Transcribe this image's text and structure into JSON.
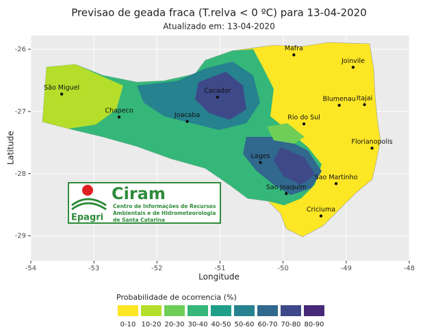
{
  "chart_data": {
    "type": "map",
    "title": "Previsao de geada fraca (T.relva < 0 ºC) para 13-04-2020",
    "subtitle": "Atualizado em: 13-04-2020",
    "xlabel": "Longitude",
    "ylabel": "Latitude",
    "xlim": [
      -54,
      -48
    ],
    "ylim": [
      -29.4,
      -25.78
    ],
    "xticks": [
      -54,
      -53,
      -52,
      -51,
      -50,
      -49,
      -48
    ],
    "yticks": [
      -29,
      -28,
      -27,
      -26
    ],
    "grid": true,
    "point_color": "#111111",
    "cities": [
      {
        "name": "Mafra",
        "lon": -49.83,
        "lat": -26.09
      },
      {
        "name": "Joinvile",
        "lon": -48.89,
        "lat": -26.29
      },
      {
        "name": "São Miguel",
        "lon": -53.51,
        "lat": -26.72
      },
      {
        "name": "Chapeco",
        "lon": -52.6,
        "lat": -27.09
      },
      {
        "name": "Cacador",
        "lon": -51.04,
        "lat": -26.77
      },
      {
        "name": "Joacaba",
        "lon": -51.52,
        "lat": -27.16
      },
      {
        "name": "Blumenau",
        "lon": -49.11,
        "lat": -26.9
      },
      {
        "name": "Itajai",
        "lon": -48.71,
        "lat": -26.89
      },
      {
        "name": "Rio do Sul",
        "lon": -49.67,
        "lat": -27.2
      },
      {
        "name": "Florianopolis",
        "lon": -48.59,
        "lat": -27.59
      },
      {
        "name": "Lages",
        "lon": -50.36,
        "lat": -27.82
      },
      {
        "name": "Sao Joaquim",
        "lon": -49.95,
        "lat": -28.32
      },
      {
        "name": "Sao Martinho",
        "lon": -49.16,
        "lat": -28.16
      },
      {
        "name": "Criciuma",
        "lon": -49.4,
        "lat": -28.68
      }
    ],
    "legend": {
      "title": "Probabilidade de ocorrencia (%)",
      "items": [
        {
          "label": "0-10",
          "color": "#fde725"
        },
        {
          "label": "10-20",
          "color": "#b5de2b"
        },
        {
          "label": "20-30",
          "color": "#6ece58"
        },
        {
          "label": "30-40",
          "color": "#35b779"
        },
        {
          "label": "40-50",
          "color": "#1f9e89"
        },
        {
          "label": "50-60",
          "color": "#26828e"
        },
        {
          "label": "60-70",
          "color": "#31688e"
        },
        {
          "label": "70-80",
          "color": "#3e4989"
        },
        {
          "label": "80-90",
          "color": "#482878"
        }
      ]
    },
    "logo": {
      "name": "Ciram",
      "lines": [
        "Centro de Informações de Recursos",
        "Ambientais e de Hidrometeorologia",
        "de Santa Catarina"
      ],
      "brand": "Epagri"
    }
  }
}
